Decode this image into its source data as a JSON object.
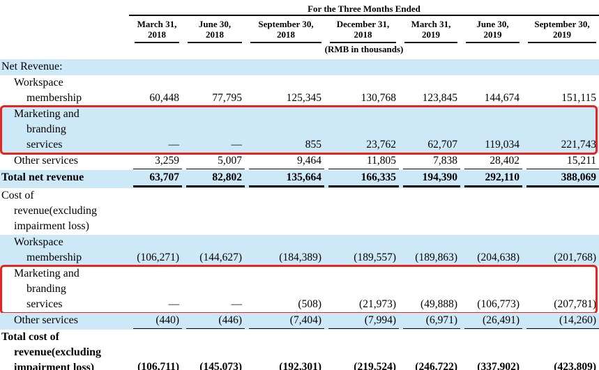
{
  "table": {
    "title": "For the Three Months Ended",
    "unit_note": "(RMB in thousands)",
    "highlight_color": "#e8241e",
    "stripe_color": "#cde9f7",
    "columns": [
      "March 31,\n2018",
      "June 30,\n2018",
      "September 30,\n2018",
      "December 31,\n2018",
      "March 31,\n2019",
      "June 30,\n2019",
      "September 30,\n2019"
    ],
    "rows": [
      {
        "label": "Net Revenue:",
        "indent": "top",
        "bg": "blue",
        "bold": false,
        "rule": "none",
        "redbox": false,
        "values": [
          "",
          "",
          "",
          "",
          "",
          "",
          ""
        ]
      },
      {
        "label": "Workspace\nmembership",
        "indent": "item",
        "bg": "white",
        "bold": false,
        "rule": "none",
        "redbox": false,
        "values": [
          "60,448",
          "77,795",
          "125,345",
          "130,768",
          "123,845",
          "144,674",
          "151,115"
        ]
      },
      {
        "label": "Marketing and\nbranding\nservices",
        "indent": "item",
        "bg": "blue",
        "bold": false,
        "rule": "none",
        "redbox": true,
        "values": [
          "—",
          "—",
          "855",
          "23,762",
          "62,707",
          "119,034",
          "221,743"
        ]
      },
      {
        "label": "Other services",
        "indent": "item",
        "bg": "white",
        "bold": false,
        "rule": "single",
        "redbox": false,
        "values": [
          "3,259",
          "5,007",
          "9,464",
          "11,805",
          "7,838",
          "28,402",
          "15,211"
        ]
      },
      {
        "label": "Total net revenue",
        "indent": "top",
        "bg": "blue",
        "bold": true,
        "rule": "thick",
        "redbox": false,
        "values": [
          "63,707",
          "82,802",
          "135,664",
          "166,335",
          "194,390",
          "292,110",
          "388,069"
        ]
      },
      {
        "label": "Cost of\nrevenue(excluding\nimpairment loss)",
        "indent": "hang",
        "bg": "white",
        "bold": false,
        "rule": "none",
        "redbox": false,
        "values": [
          "",
          "",
          "",
          "",
          "",
          "",
          ""
        ]
      },
      {
        "label": "Workspace\nmembership",
        "indent": "item",
        "bg": "blue",
        "bold": false,
        "rule": "none",
        "redbox": false,
        "values": [
          "(106,271)",
          "(144,627)",
          "(184,389)",
          "(189,557)",
          "(189,863)",
          "(204,638)",
          "(201,768)"
        ]
      },
      {
        "label": "Marketing and\nbranding\nservices",
        "indent": "item",
        "bg": "white",
        "bold": false,
        "rule": "none",
        "redbox": true,
        "values": [
          "—",
          "—",
          "(508)",
          "(21,973)",
          "(49,888)",
          "(106,773)",
          "(207,781)"
        ]
      },
      {
        "label": "Other services",
        "indent": "item",
        "bg": "blue",
        "bold": false,
        "rule": "single",
        "redbox": false,
        "values": [
          "(440)",
          "(446)",
          "(7,404)",
          "(7,994)",
          "(6,971)",
          "(26,491)",
          "(14,260)"
        ]
      },
      {
        "label": "Total cost of\nrevenue(excluding\nimpairment loss)",
        "indent": "hang",
        "bg": "white",
        "bold": true,
        "rule": "single",
        "redbox": false,
        "values": [
          "(106,711)",
          "(145,073)",
          "(192,301)",
          "(219,524)",
          "(246,722)",
          "(337,902)",
          "(423,809)"
        ]
      }
    ]
  }
}
